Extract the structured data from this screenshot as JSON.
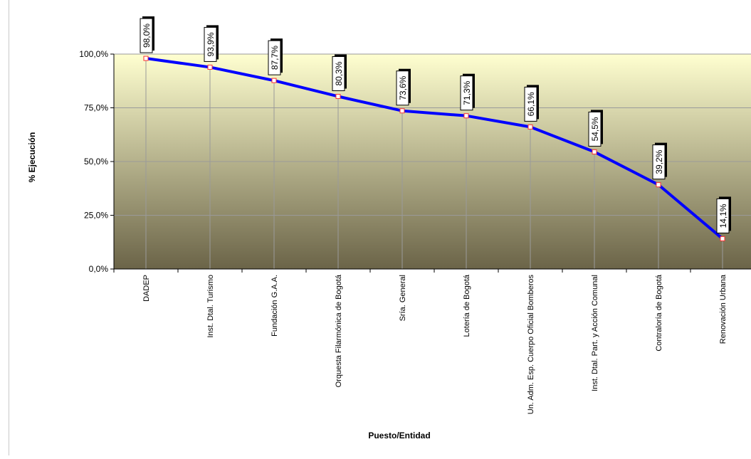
{
  "chart_data": {
    "type": "line",
    "title": "",
    "xlabel": "Puesto/Entidad",
    "ylabel": "% Ejecución",
    "categories": [
      "DADEP",
      "Inst. Dtal. Turismo",
      "Fundación G.A.A.",
      "Orquesta Filarmónica de Bogotá",
      "Sría. General",
      "Lotería de Bogotá",
      "Un. Adm. Esp. Cuerpo Oficial Bomberos",
      "Inst. Dtal. Part. y Acción Comunal",
      "Contraloría de Bogotá",
      "Renovación Urbana"
    ],
    "series": [
      {
        "values": [
          98.0,
          93.9,
          87.7,
          80.3,
          73.6,
          71.3,
          66.1,
          54.5,
          39.2,
          14.1
        ]
      }
    ],
    "data_labels": [
      "98,0%",
      "93,9%",
      "87,7%",
      "80,3%",
      "73,6%",
      "71,3%",
      "66,1%",
      "54,5%",
      "39,2%",
      "14,1%"
    ],
    "yticks": [
      "0,0%",
      "25,0%",
      "50,0%",
      "75,0%",
      "100,0%"
    ],
    "ylim": [
      0,
      100
    ],
    "grid": true,
    "legend": "none",
    "colors": {
      "line": "#0000ff",
      "marker": "#ff3030",
      "plot_top": "#ffffd0",
      "plot_bottom": "#6b6448",
      "gridline": "#9a9a9a"
    }
  }
}
